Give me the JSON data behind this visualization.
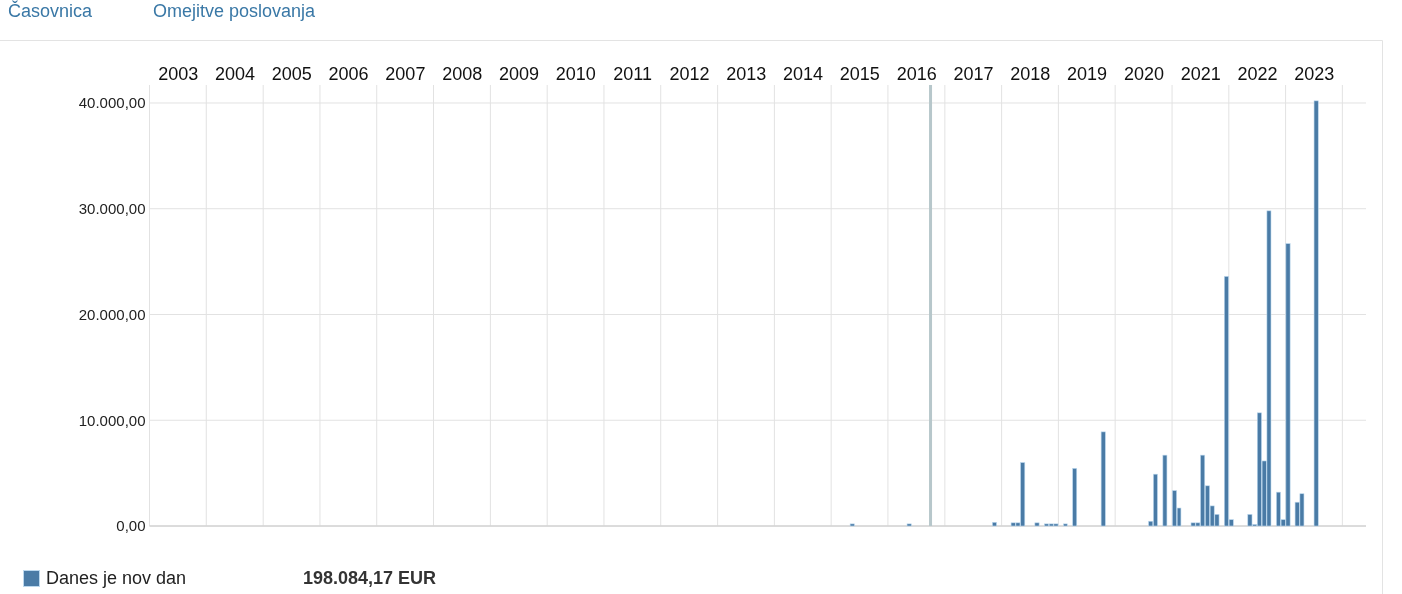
{
  "chart_data": {
    "type": "bar",
    "x": [
      "2015-05",
      "2016-05",
      "2017-11",
      "2018-03",
      "2018-04",
      "2018-05",
      "2018-08",
      "2018-10",
      "2018-11",
      "2018-12",
      "2019-02",
      "2019-04",
      "2019-10",
      "2020-08",
      "2020-09",
      "2020-11",
      "2021-01",
      "2021-02",
      "2021-05",
      "2021-06",
      "2021-07",
      "2021-08",
      "2021-09",
      "2021-10",
      "2021-12",
      "2022-01",
      "2022-05",
      "2022-06",
      "2022-07",
      "2022-08",
      "2022-09",
      "2022-11",
      "2022-12",
      "2023-01",
      "2023-03",
      "2023-04",
      "2023-07"
    ],
    "series": [
      {
        "name": "Danes je nov dan",
        "color": "#4a7ba6",
        "values": [
          200,
          200,
          350,
          300,
          300,
          6000,
          300,
          200,
          200,
          200,
          200,
          5450,
          8900,
          450,
          4900,
          6700,
          3350,
          1700,
          300,
          300,
          6700,
          3800,
          1900,
          1100,
          23600,
          600,
          1100,
          150,
          10700,
          6150,
          29800,
          3200,
          600,
          26700,
          2250,
          3050,
          40200
        ]
      }
    ],
    "xlim": [
      "2003-01",
      "2024-06"
    ],
    "xticks": [
      {
        "value": "2003",
        "label": null
      },
      {
        "value": "2003-07",
        "label": "2003"
      },
      {
        "value": "2004",
        "label": null
      },
      {
        "value": "2004-07",
        "label": "2004"
      },
      {
        "value": "2005",
        "label": null
      },
      {
        "value": "2005-07",
        "label": "2005"
      },
      {
        "value": "2006",
        "label": null
      },
      {
        "value": "2006-07",
        "label": "2006"
      },
      {
        "value": "2007",
        "label": null
      },
      {
        "value": "2007-07",
        "label": "2007"
      },
      {
        "value": "2008",
        "label": null
      },
      {
        "value": "2008-07",
        "label": "2008"
      },
      {
        "value": "2009",
        "label": null
      },
      {
        "value": "2009-07",
        "label": "2009"
      },
      {
        "value": "2010",
        "label": null
      },
      {
        "value": "2010-07",
        "label": "2010"
      },
      {
        "value": "2011",
        "label": null
      },
      {
        "value": "2011-07",
        "label": "2011"
      },
      {
        "value": "2012",
        "label": null
      },
      {
        "value": "2012-07",
        "label": "2012"
      },
      {
        "value": "2013",
        "label": null
      },
      {
        "value": "2013-07",
        "label": "2013"
      },
      {
        "value": "2014",
        "label": null
      },
      {
        "value": "2014-07",
        "label": "2014"
      },
      {
        "value": "2015",
        "label": null
      },
      {
        "value": "2015-07",
        "label": "2015"
      },
      {
        "value": "2016",
        "label": null
      },
      {
        "value": "2016-07",
        "label": "2016"
      },
      {
        "value": "2017",
        "label": null
      },
      {
        "value": "2017-07",
        "label": "2017"
      },
      {
        "value": "2018",
        "label": null
      },
      {
        "value": "2018-07",
        "label": "2018"
      },
      {
        "value": "2019",
        "label": null
      },
      {
        "value": "2019-07",
        "label": "2019"
      },
      {
        "value": "2020",
        "label": null
      },
      {
        "value": "2020-07",
        "label": "2020"
      },
      {
        "value": "2021",
        "label": null
      },
      {
        "value": "2021-07",
        "label": "2021"
      },
      {
        "value": "2022",
        "label": null
      },
      {
        "value": "2022-07",
        "label": "2022"
      },
      {
        "value": "2023",
        "label": null
      },
      {
        "value": "2023-07",
        "label": "2023"
      },
      {
        "value": "2024",
        "label": null
      }
    ],
    "ylim": [
      0,
      41700
    ],
    "yticks": [
      {
        "value": 0,
        "label": "0,00"
      },
      {
        "value": 10000,
        "label": "10.000,00"
      },
      {
        "value": 20000,
        "label": "20.000,00"
      },
      {
        "value": 30000,
        "label": "30.000,00"
      },
      {
        "value": 40000,
        "label": "40.000,00"
      }
    ],
    "grid": true,
    "legend": "bottom left",
    "ref_lines": [
      {
        "axis": "x",
        "value": "2016-10",
        "color": "#b7c7cb"
      }
    ],
    "annotations": [
      "Časovnica",
      "Omejitve poslovanja",
      "198.084,17 EUR"
    ]
  }
}
